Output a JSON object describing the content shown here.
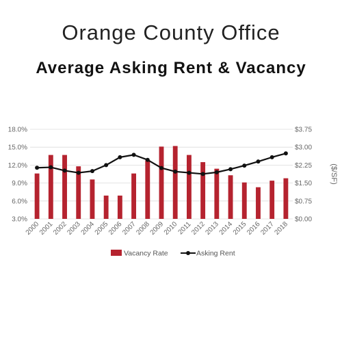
{
  "title": "Orange County Office",
  "subtitle": "Average Asking Rent & Vacancy",
  "chart_data": {
    "type": "bar",
    "categories": [
      "2000",
      "2001",
      "2002",
      "2003",
      "2004",
      "2005",
      "2006",
      "2007",
      "2008",
      "2009",
      "2010",
      "2011",
      "2012",
      "2013",
      "2014",
      "2015",
      "2016",
      "2017",
      "2018"
    ],
    "series": [
      {
        "name": "Vacancy Rate",
        "type": "bar",
        "axis": "left",
        "color": "#B5232F",
        "values": [
          10.6,
          13.7,
          13.7,
          11.8,
          9.6,
          6.9,
          6.9,
          10.6,
          12.8,
          15.1,
          15.2,
          13.7,
          12.5,
          11.4,
          10.3,
          9.1,
          8.3,
          9.4,
          9.8
        ]
      },
      {
        "name": "Asking Rent",
        "type": "line",
        "axis": "right",
        "color": "#111111",
        "values": [
          2.14,
          2.16,
          2.02,
          1.93,
          2.0,
          2.25,
          2.58,
          2.68,
          2.47,
          2.13,
          1.98,
          1.93,
          1.88,
          1.95,
          2.08,
          2.23,
          2.4,
          2.58,
          2.74
        ]
      }
    ],
    "ylim_left": [
      3.0,
      18.0
    ],
    "yticks_left": [
      "3.0%",
      "6.0%",
      "9.0%",
      "12.0%",
      "15.0%",
      "18.0%"
    ],
    "yticks_left_values": [
      3,
      6,
      9,
      12,
      15,
      18
    ],
    "ylim_right": [
      0,
      3.75
    ],
    "yticks_right": [
      "$0.00",
      "$0.75",
      "$1.50",
      "$2.25",
      "$3.00",
      "$3.75"
    ],
    "yticks_right_values": [
      0,
      0.75,
      1.5,
      2.25,
      3.0,
      3.75
    ],
    "ylabel_right": "($/SF)",
    "grid": true,
    "legend_position": "bottom",
    "legend": [
      "Vacancy Rate",
      "Asking Rent"
    ]
  }
}
